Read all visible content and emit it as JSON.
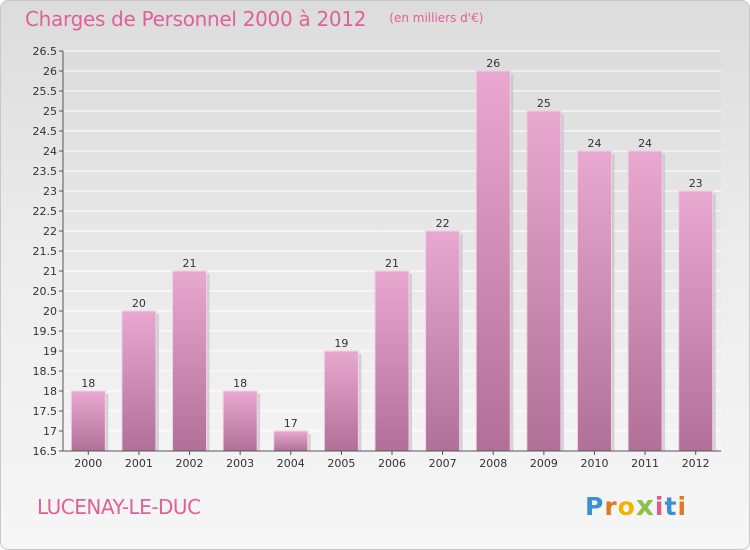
{
  "header": {
    "title": "Charges de Personnel 2000 à 2012",
    "subtitle": "(en milliers d'€)"
  },
  "footer": {
    "commune": "LUCENAY-LE-DUC",
    "logo_text": "Proxiti"
  },
  "colors": {
    "accent": "#e0609a",
    "bar_top": "#e8a8d0",
    "bar_bottom": "#b07098"
  },
  "chart_data": {
    "type": "bar",
    "title": "Charges de Personnel 2000 à 2012",
    "subtitle": "(en milliers d'€)",
    "categories": [
      "2000",
      "2001",
      "2002",
      "2003",
      "2004",
      "2005",
      "2006",
      "2007",
      "2008",
      "2009",
      "2010",
      "2011",
      "2012"
    ],
    "values": [
      18,
      20,
      21,
      18,
      17,
      19,
      21,
      22,
      26,
      25,
      24,
      24,
      23
    ],
    "data_labels": [
      "18",
      "20",
      "21",
      "18",
      "17",
      "19",
      "21",
      "22",
      "26",
      "25",
      "24",
      "24",
      "23"
    ],
    "yticks": [
      "16.5",
      "17",
      "17.5",
      "18",
      "18.5",
      "19",
      "19.5",
      "20",
      "20.5",
      "21",
      "21.5",
      "22",
      "22.5",
      "23",
      "23.5",
      "24",
      "24.5",
      "25",
      "25.5",
      "26",
      "26.5"
    ],
    "ylim": [
      16.5,
      26.5
    ],
    "grid": true,
    "legend": "none"
  }
}
